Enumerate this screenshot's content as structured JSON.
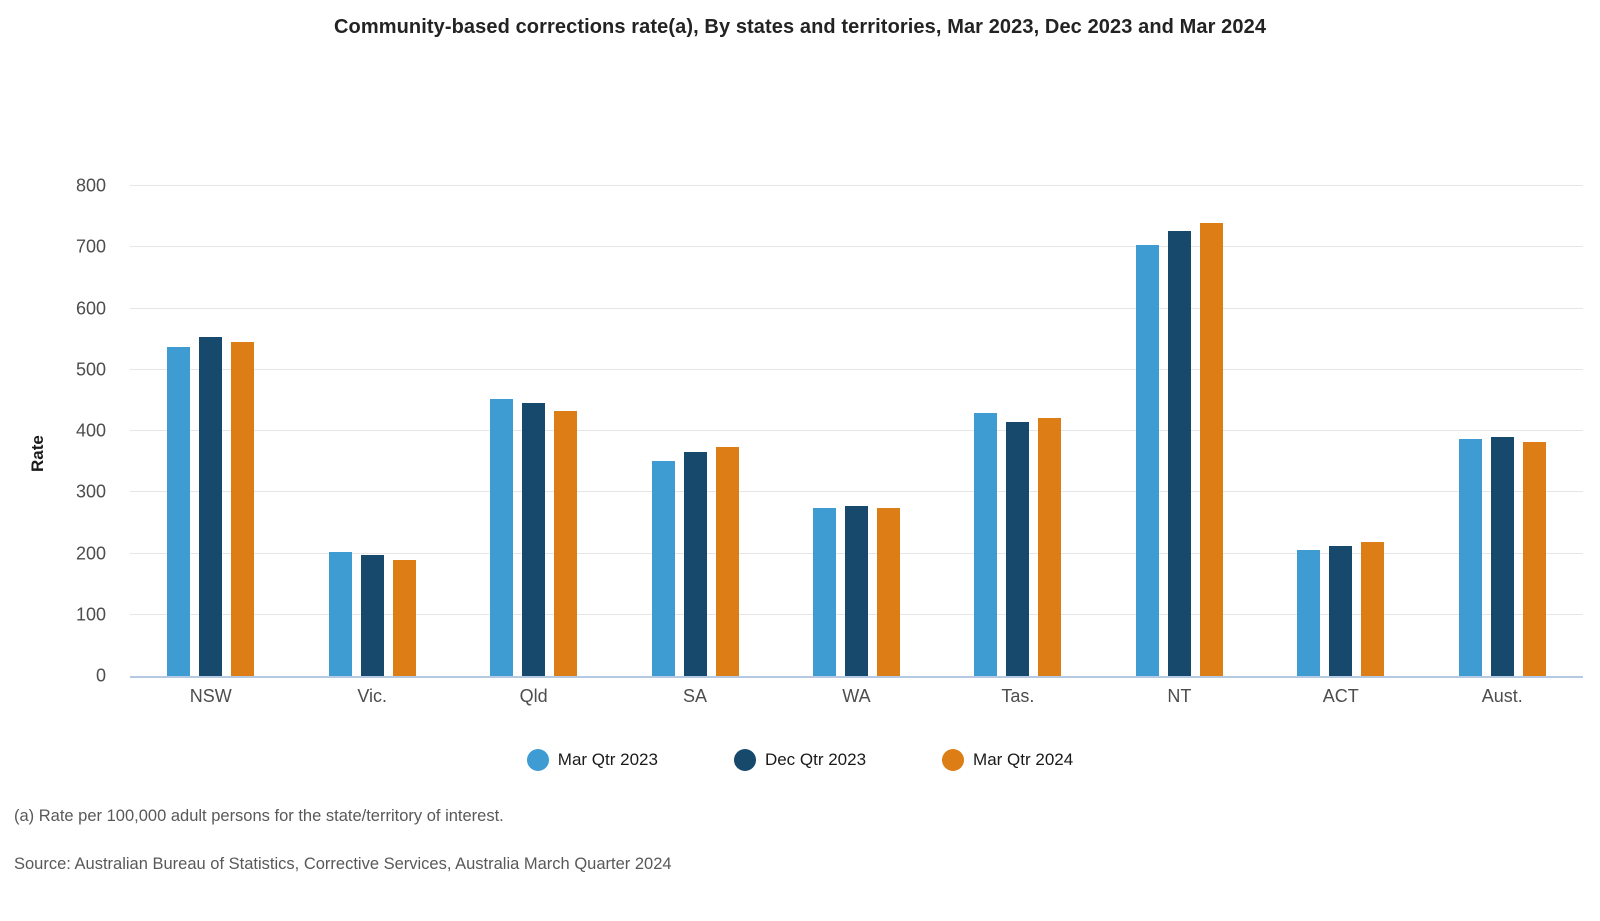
{
  "chart_data": {
    "type": "bar",
    "title": "Community-based corrections rate(a), By states and territories, Mar 2023, Dec 2023 and Mar 2024",
    "ylabel": "Rate",
    "ylim": [
      0,
      800
    ],
    "yticks": [
      0,
      100,
      200,
      300,
      400,
      500,
      600,
      700,
      800
    ],
    "grid": "horizontal-on",
    "legend_position": "bottom-center",
    "categories": [
      "NSW",
      "Vic.",
      "Qld",
      "SA",
      "WA",
      "Tas.",
      "NT",
      "ACT",
      "Aust."
    ],
    "series": [
      {
        "name": "Mar Qtr 2023",
        "color": "#3F9CD3",
        "values": [
          537,
          203,
          453,
          351,
          274,
          430,
          703,
          205,
          387
        ]
      },
      {
        "name": "Dec Qtr 2023",
        "color": "#17496D",
        "values": [
          553,
          198,
          445,
          366,
          277,
          414,
          726,
          213,
          390
        ]
      },
      {
        "name": "Mar Qtr 2024",
        "color": "#DD7D15",
        "values": [
          545,
          190,
          432,
          374,
          274,
          421,
          739,
          219,
          382
        ]
      }
    ],
    "footnote": "(a) Rate per 100,000 adult persons for the state/territory of interest.",
    "source": "Source: Australian Bureau of Statistics, Corrective Services, Australia March Quarter 2024",
    "colors": {
      "gridline": "#E6E6E6",
      "axis_line": "#B6C9E2",
      "tick_label": "#4D4D4D",
      "title_text": "#232323",
      "note_text": "#595959"
    }
  }
}
